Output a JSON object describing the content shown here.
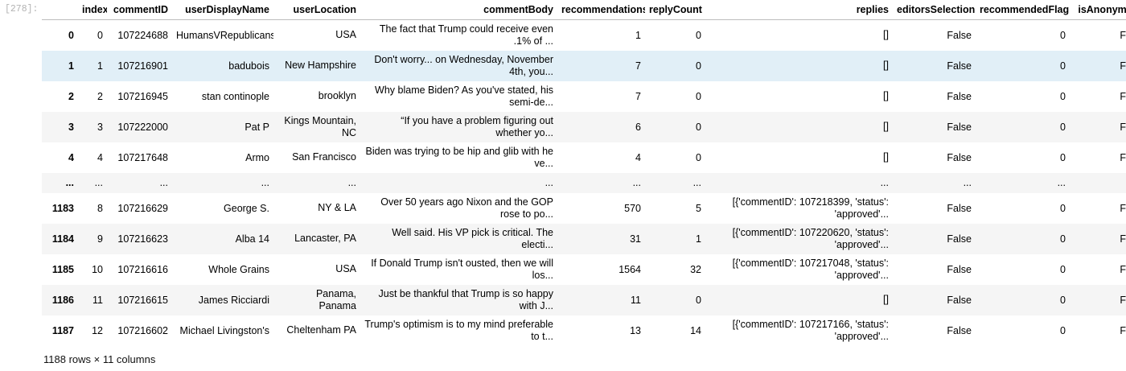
{
  "cell": {
    "prompt": "[278]:"
  },
  "table": {
    "columns": [
      "",
      "index",
      "commentID",
      "userDisplayName",
      "userLocation",
      "commentBody",
      "recommendations",
      "replyCount",
      "replies",
      "editorsSelection",
      "recommendedFlag",
      "isAnonymous"
    ],
    "rows": [
      [
        "0",
        "0",
        "107224688",
        "HumansVRepublicans",
        "USA",
        "The fact that Trump could receive even .1% of ...",
        "1",
        "0",
        "[]",
        "False",
        "0",
        "False"
      ],
      [
        "1",
        "1",
        "107216901",
        "badubois",
        "New Hampshire",
        "Don't worry... on Wednesday, November 4th, you...",
        "7",
        "0",
        "[]",
        "False",
        "0",
        "False"
      ],
      [
        "2",
        "2",
        "107216945",
        "stan continople",
        "brooklyn",
        "Why blame Biden? As you've stated, his semi-de...",
        "7",
        "0",
        "[]",
        "False",
        "0",
        "False"
      ],
      [
        "3",
        "3",
        "107222000",
        "Pat P",
        "Kings Mountain, NC",
        "“If you have a problem figuring out whether yo...",
        "6",
        "0",
        "[]",
        "False",
        "0",
        "False"
      ],
      [
        "4",
        "4",
        "107217648",
        "Armo",
        "San Francisco",
        "Biden was trying to be hip and glib with he ve...",
        "4",
        "0",
        "[]",
        "False",
        "0",
        "False"
      ],
      [
        "...",
        "...",
        "...",
        "...",
        "...",
        "...",
        "...",
        "...",
        "...",
        "...",
        "...",
        "..."
      ],
      [
        "1183",
        "8",
        "107216629",
        "George S.",
        "NY & LA",
        "Over 50 years ago Nixon and the GOP rose to po...",
        "570",
        "5",
        "[{'commentID': 107218399, 'status': 'approved'...",
        "False",
        "0",
        "False"
      ],
      [
        "1184",
        "9",
        "107216623",
        "Alba 14",
        "Lancaster, PA",
        "Well said. His VP pick is critical. The electi...",
        "31",
        "1",
        "[{'commentID': 107220620, 'status': 'approved'...",
        "False",
        "0",
        "False"
      ],
      [
        "1185",
        "10",
        "107216616",
        "Whole Grains",
        "USA",
        "If Donald Trump isn't ousted, then we will los...",
        "1564",
        "32",
        "[{'commentID': 107217048, 'status': 'approved'...",
        "False",
        "0",
        "False"
      ],
      [
        "1186",
        "11",
        "107216615",
        "James Ricciardi",
        "Panama, Panama",
        "Just be thankful that Trump is so happy with J...",
        "11",
        "0",
        "[]",
        "False",
        "0",
        "False"
      ],
      [
        "1187",
        "12",
        "107216602",
        "Michael Livingston's",
        "Cheltenham PA",
        "Trump's optimism is to my mind preferable to t...",
        "13",
        "14",
        "[{'commentID': 107217166, 'status': 'approved'...",
        "False",
        "0",
        "False"
      ]
    ]
  },
  "footer": "1188 rows × 11 columns",
  "colors": {
    "hover_row": "#e1eff7",
    "stripe": "#f5f5f5",
    "prompt": "#b3b3b3"
  }
}
